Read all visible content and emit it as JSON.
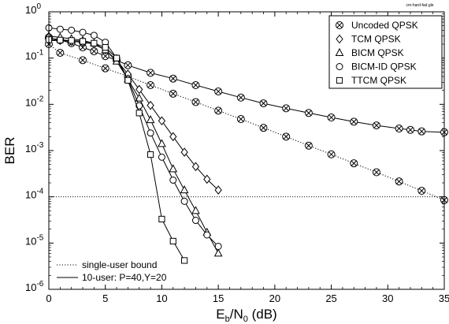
{
  "chart_data": {
    "type": "line",
    "corner_note": "cm-hard-fad.gle",
    "xlabel_main": "E",
    "xlabel_sub1": "b",
    "xlabel_mid": "/N",
    "xlabel_sub2": "0",
    "xlabel_tail": " (dB)",
    "ylabel": "BER",
    "xlim": [
      0,
      35
    ],
    "ylim": [
      1e-06,
      1
    ],
    "yscale": "log",
    "grid": false,
    "legend_position": "top-right",
    "xticks": [
      0,
      5,
      10,
      15,
      20,
      25,
      30,
      35
    ],
    "x_tick_labels": [
      "0",
      "5",
      "10",
      "15",
      "20",
      "25",
      "30",
      "35"
    ],
    "y_tick_labels": [
      {
        "base": "10",
        "exp": "0"
      },
      {
        "base": "10",
        "exp": "-1"
      },
      {
        "base": "10",
        "exp": "-2"
      },
      {
        "base": "10",
        "exp": "-3"
      },
      {
        "base": "10",
        "exp": "-4"
      },
      {
        "base": "10",
        "exp": "-5"
      },
      {
        "base": "10",
        "exp": "-6"
      }
    ],
    "hline": {
      "y": 0.0001
    },
    "series": [
      {
        "name": "Uncoded QPSK",
        "marker": "crossed-circle",
        "line": "solid",
        "x": [
          0,
          1,
          2,
          3,
          4,
          5,
          6,
          7,
          9,
          11,
          13,
          15,
          17,
          19,
          21,
          23,
          25,
          27,
          29,
          31,
          32,
          33,
          35
        ],
        "y": [
          0.28,
          0.245,
          0.21,
          0.17,
          0.14,
          0.11,
          0.09,
          0.07,
          0.048,
          0.036,
          0.026,
          0.019,
          0.014,
          0.0105,
          0.0082,
          0.0065,
          0.0052,
          0.0042,
          0.0035,
          0.003,
          0.0028,
          0.0026,
          0.0025
        ]
      },
      {
        "name": "Uncoded QPSK",
        "marker": "crossed-circle",
        "line": "dotted",
        "x": [
          0,
          1,
          3,
          5,
          7,
          9,
          11,
          13,
          15,
          17,
          19,
          21,
          23,
          25,
          27,
          29,
          31,
          33,
          35
        ],
        "y": [
          0.2,
          0.13,
          0.09,
          0.06,
          0.04,
          0.026,
          0.017,
          0.0112,
          0.0073,
          0.0048,
          0.0031,
          0.002,
          0.00128,
          0.00083,
          0.00053,
          0.00034,
          0.000215,
          0.000135,
          8.5e-05
        ]
      },
      {
        "name": "TCM QPSK",
        "marker": "diamond",
        "line": "solid",
        "x": [
          0,
          1,
          2,
          3,
          4,
          5,
          6,
          7,
          8,
          9,
          10,
          11,
          12,
          13,
          14,
          15
        ],
        "y": [
          0.24,
          0.24,
          0.23,
          0.22,
          0.2,
          0.15,
          0.09,
          0.045,
          0.021,
          0.0095,
          0.0044,
          0.002,
          0.00092,
          0.00045,
          0.00024,
          0.00014
        ]
      },
      {
        "name": "BICM QPSK",
        "marker": "triangle",
        "line": "solid",
        "x": [
          0,
          1,
          2,
          3,
          4,
          5,
          6,
          7,
          8,
          9,
          10,
          11,
          12,
          13,
          14,
          15
        ],
        "y": [
          0.3,
          0.28,
          0.26,
          0.24,
          0.21,
          0.15,
          0.085,
          0.035,
          0.0135,
          0.0046,
          0.0014,
          0.0004,
          0.00014,
          5e-05,
          1.7e-05,
          6e-06
        ]
      },
      {
        "name": "BICM-ID QPSK",
        "marker": "circle",
        "line": "solid",
        "x": [
          0,
          1,
          2,
          3,
          4,
          5,
          6,
          7,
          8,
          9,
          10,
          11,
          12,
          13,
          14,
          15
        ],
        "y": [
          0.45,
          0.42,
          0.4,
          0.36,
          0.31,
          0.22,
          0.1,
          0.035,
          0.0093,
          0.0024,
          0.00072,
          0.00023,
          8e-05,
          3.1e-05,
          1.5e-05,
          8.5e-06
        ]
      },
      {
        "name": "TTCM QPSK",
        "marker": "square",
        "line": "solid",
        "x": [
          0,
          1,
          2,
          3,
          4,
          5,
          6,
          7,
          8,
          9,
          10,
          11,
          12
        ],
        "y": [
          0.25,
          0.245,
          0.24,
          0.23,
          0.21,
          0.17,
          0.1,
          0.033,
          0.0065,
          0.00082,
          3.3e-05,
          1.1e-05,
          4.2e-06
        ]
      }
    ],
    "legend_items": [
      {
        "label": "Uncoded QPSK",
        "marker": "crossed-circle"
      },
      {
        "label": "TCM QPSK",
        "marker": "diamond"
      },
      {
        "label": "BICM QPSK",
        "marker": "triangle"
      },
      {
        "label": "BICM-ID QPSK",
        "marker": "circle"
      },
      {
        "label": "TTCM QPSK",
        "marker": "square"
      }
    ],
    "line_legend": [
      {
        "label": "single-user bound",
        "line": "dotted"
      },
      {
        "label": "10-user: P=40,Y=20",
        "line": "solid"
      }
    ]
  }
}
